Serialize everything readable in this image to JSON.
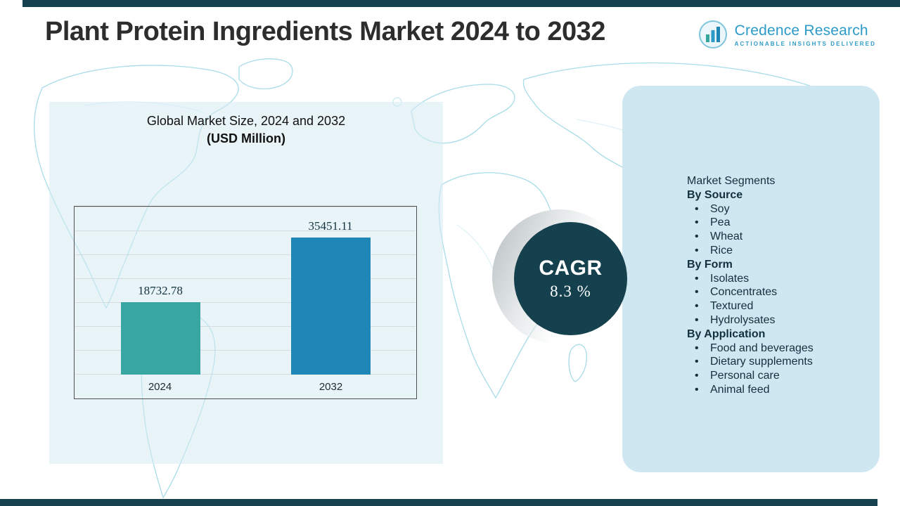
{
  "page": {
    "title": "Plant Protein Ingredients Market 2024 to 2032"
  },
  "logo": {
    "name": "Credence Research",
    "tagline": "Actionable Insights Delivered"
  },
  "chart_data": {
    "type": "bar",
    "title": "Global Market Size, 2024 and 2032",
    "subtitle": "(USD Million)",
    "categories": [
      "2024",
      "2032"
    ],
    "values": [
      18732.78,
      35451.11
    ],
    "value_labels": [
      "18732.78",
      "35451.11"
    ],
    "ylim": [
      0,
      43500
    ],
    "grid": true,
    "legend_position": "none",
    "bar_colors": [
      "#38a7a2",
      "#1f87b7"
    ]
  },
  "cagr": {
    "label": "CAGR",
    "value": "8.3 %"
  },
  "segments": {
    "title": "Market Segments",
    "groups": [
      {
        "label": "By Source",
        "items": [
          "Soy",
          "Pea",
          "Wheat",
          "Rice"
        ]
      },
      {
        "label": "By Form",
        "items": [
          "Isolates",
          "Concentrates",
          "Textured",
          "Hydrolysates"
        ]
      },
      {
        "label": "By Application",
        "items": [
          "Food and beverages",
          "Dietary supplements",
          "Personal care",
          "Animal feed"
        ]
      }
    ]
  },
  "colors": {
    "band": "#16414e",
    "panel": "#cfe7f1",
    "circle": "#15404d",
    "brand_blue": "#2d9bc7",
    "map_line": "#a7dce8",
    "bar_2024": "#38a7a2",
    "bar_2032": "#1f87b7"
  }
}
